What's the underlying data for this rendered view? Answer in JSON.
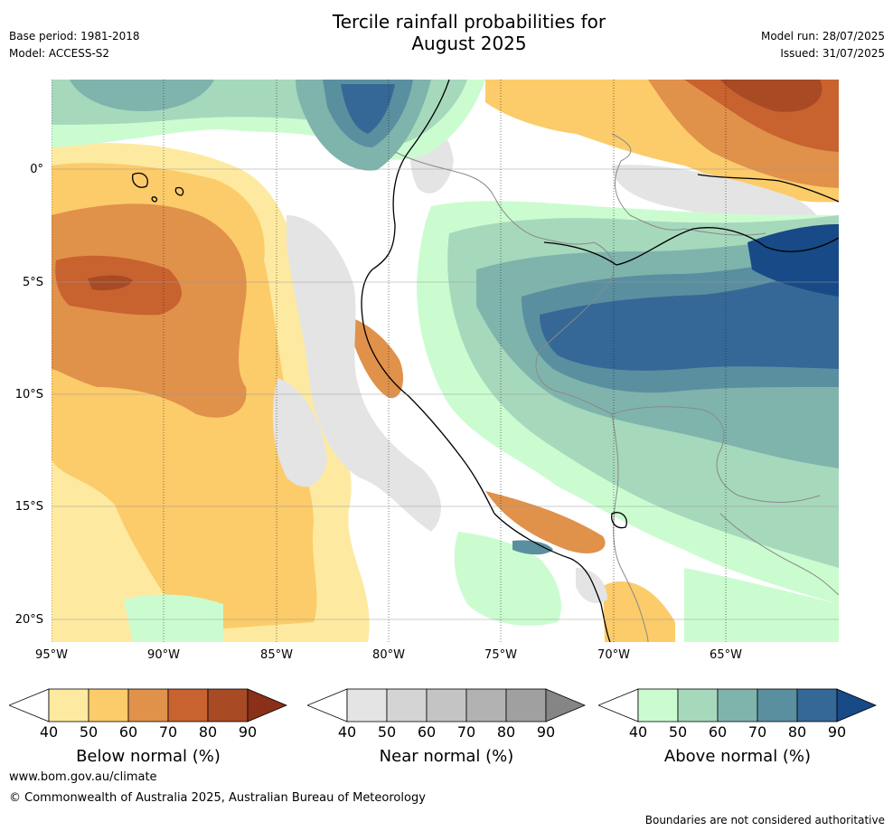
{
  "header": {
    "title_line1": "Tercile rainfall probabilities for",
    "title_line2": "August 2025",
    "base_period": "Base period: 1981-2018",
    "model": "Model: ACCESS-S2",
    "model_run": "Model run: 28/07/2025",
    "issued": "Issued: 31/07/2025"
  },
  "axes": {
    "longitude_labels": [
      "95°W",
      "90°W",
      "85°W",
      "80°W",
      "75°W",
      "70°W",
      "65°W"
    ],
    "latitude_labels": [
      "0°",
      "5°S",
      "10°S",
      "15°S",
      "20°S"
    ]
  },
  "legends": [
    {
      "title": "Below normal (%)",
      "ticks": [
        "40",
        "50",
        "60",
        "70",
        "80",
        "90"
      ],
      "colors": [
        "#ffffff",
        "#fdeaa0",
        "#fccb6a",
        "#e0914a",
        "#c8622f",
        "#a84a24",
        "#8a3018"
      ]
    },
    {
      "title": "Near normal (%)",
      "ticks": [
        "40",
        "50",
        "60",
        "70",
        "80",
        "90"
      ],
      "colors": [
        "#ffffff",
        "#e4e4e4",
        "#d4d4d4",
        "#c4c4c4",
        "#b2b2b2",
        "#a0a0a0",
        "#858585"
      ]
    },
    {
      "title": "Above normal (%)",
      "ticks": [
        "40",
        "50",
        "60",
        "70",
        "80",
        "90"
      ],
      "colors": [
        "#ffffff",
        "#cbfcd0",
        "#a6d8bc",
        "#7fb4ad",
        "#5a8fa0",
        "#356896",
        "#174a86"
      ]
    }
  ],
  "footer": {
    "website": "www.bom.gov.au/climate",
    "copyright": "© Commonwealth of Australia 2025, Australian Bureau of Meteorology",
    "disclaimer": "Boundaries are not considered authoritative"
  }
}
